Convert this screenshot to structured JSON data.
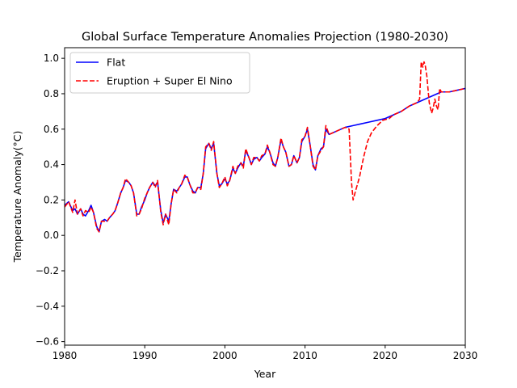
{
  "chart_data": {
    "type": "line",
    "title": "Global Surface Temperature Anomalies Projection (1980-2030)",
    "xlabel": "Year",
    "ylabel": "Temperature Anomaly($^\\circ$C)",
    "ylabel_display": "Temperature Anomaly(°C)",
    "xlim": [
      1980,
      2030
    ],
    "ylim": [
      -0.62,
      1.06
    ],
    "x_ticks": [
      1980,
      1990,
      2000,
      2010,
      2020,
      2030
    ],
    "y_ticks": [
      -0.6,
      -0.4,
      -0.2,
      0.0,
      0.2,
      0.4,
      0.6,
      0.8,
      1.0
    ],
    "x_tick_labels": [
      "1980",
      "1990",
      "2000",
      "2010",
      "2020",
      "2030"
    ],
    "y_tick_labels": [
      "−0.6",
      "−0.4",
      "−0.2",
      "0.0",
      "0.2",
      "0.4",
      "0.6",
      "0.8",
      "1.0"
    ],
    "grid": false,
    "legend_position": "upper-left",
    "series": [
      {
        "name": "Flat",
        "color": "#0000ff",
        "style": "solid",
        "points": [
          [
            1980.0,
            0.17
          ],
          [
            1980.5,
            0.19
          ],
          [
            1981.0,
            0.14
          ],
          [
            1981.3,
            0.15
          ],
          [
            1981.6,
            0.12
          ],
          [
            1982.0,
            0.15
          ],
          [
            1982.3,
            0.12
          ],
          [
            1982.6,
            0.11
          ],
          [
            1983.0,
            0.14
          ],
          [
            1983.3,
            0.17
          ],
          [
            1983.6,
            0.13
          ],
          [
            1984.0,
            0.05
          ],
          [
            1984.3,
            0.02
          ],
          [
            1984.6,
            0.08
          ],
          [
            1985.0,
            0.09
          ],
          [
            1985.3,
            0.08
          ],
          [
            1985.6,
            0.1
          ],
          [
            1986.0,
            0.12
          ],
          [
            1986.3,
            0.14
          ],
          [
            1986.6,
            0.18
          ],
          [
            1987.0,
            0.24
          ],
          [
            1987.3,
            0.27
          ],
          [
            1987.6,
            0.31
          ],
          [
            1988.0,
            0.3
          ],
          [
            1988.3,
            0.28
          ],
          [
            1988.6,
            0.24
          ],
          [
            1989.0,
            0.12
          ],
          [
            1989.3,
            0.12
          ],
          [
            1989.6,
            0.16
          ],
          [
            1990.0,
            0.2
          ],
          [
            1990.3,
            0.24
          ],
          [
            1990.6,
            0.27
          ],
          [
            1991.0,
            0.3
          ],
          [
            1991.3,
            0.28
          ],
          [
            1991.6,
            0.3
          ],
          [
            1992.0,
            0.14
          ],
          [
            1992.3,
            0.07
          ],
          [
            1992.6,
            0.12
          ],
          [
            1993.0,
            0.08
          ],
          [
            1993.3,
            0.18
          ],
          [
            1993.6,
            0.26
          ],
          [
            1994.0,
            0.25
          ],
          [
            1994.3,
            0.27
          ],
          [
            1994.6,
            0.29
          ],
          [
            1995.0,
            0.33
          ],
          [
            1995.3,
            0.33
          ],
          [
            1995.6,
            0.29
          ],
          [
            1996.0,
            0.25
          ],
          [
            1996.3,
            0.24
          ],
          [
            1996.6,
            0.27
          ],
          [
            1997.0,
            0.27
          ],
          [
            1997.3,
            0.35
          ],
          [
            1997.6,
            0.49
          ],
          [
            1998.0,
            0.52
          ],
          [
            1998.3,
            0.49
          ],
          [
            1998.6,
            0.52
          ],
          [
            1999.0,
            0.35
          ],
          [
            1999.3,
            0.28
          ],
          [
            1999.6,
            0.29
          ],
          [
            2000.0,
            0.32
          ],
          [
            2000.3,
            0.29
          ],
          [
            2000.6,
            0.31
          ],
          [
            2001.0,
            0.38
          ],
          [
            2001.3,
            0.35
          ],
          [
            2001.6,
            0.38
          ],
          [
            2002.0,
            0.41
          ],
          [
            2002.3,
            0.39
          ],
          [
            2002.6,
            0.48
          ],
          [
            2003.0,
            0.44
          ],
          [
            2003.3,
            0.4
          ],
          [
            2003.6,
            0.43
          ],
          [
            2004.0,
            0.44
          ],
          [
            2004.3,
            0.42
          ],
          [
            2004.6,
            0.44
          ],
          [
            2005.0,
            0.46
          ],
          [
            2005.3,
            0.5
          ],
          [
            2005.6,
            0.47
          ],
          [
            2006.0,
            0.41
          ],
          [
            2006.3,
            0.39
          ],
          [
            2006.6,
            0.44
          ],
          [
            2007.0,
            0.54
          ],
          [
            2007.3,
            0.5
          ],
          [
            2007.6,
            0.47
          ],
          [
            2008.0,
            0.39
          ],
          [
            2008.3,
            0.4
          ],
          [
            2008.6,
            0.45
          ],
          [
            2009.0,
            0.41
          ],
          [
            2009.3,
            0.44
          ],
          [
            2009.6,
            0.53
          ],
          [
            2010.0,
            0.56
          ],
          [
            2010.3,
            0.6
          ],
          [
            2010.6,
            0.52
          ],
          [
            2011.0,
            0.4
          ],
          [
            2011.3,
            0.37
          ],
          [
            2011.6,
            0.45
          ],
          [
            2012.0,
            0.49
          ],
          [
            2012.3,
            0.5
          ],
          [
            2012.6,
            0.6
          ],
          [
            2013.0,
            0.57
          ],
          [
            2014.0,
            0.59
          ],
          [
            2015.0,
            0.61
          ],
          [
            2016.0,
            0.62
          ],
          [
            2017.0,
            0.63
          ],
          [
            2018.0,
            0.64
          ],
          [
            2019.0,
            0.65
          ],
          [
            2020.0,
            0.66
          ],
          [
            2021.0,
            0.68
          ],
          [
            2022.0,
            0.7
          ],
          [
            2023.0,
            0.73
          ],
          [
            2024.0,
            0.75
          ],
          [
            2025.0,
            0.77
          ],
          [
            2026.0,
            0.79
          ],
          [
            2027.0,
            0.81
          ],
          [
            2028.0,
            0.81
          ],
          [
            2029.0,
            0.82
          ],
          [
            2030.0,
            0.83
          ]
        ]
      },
      {
        "name": "Eruption + Super El Nino",
        "color": "#ff0000",
        "style": "dashed",
        "points": [
          [
            1980.0,
            0.16
          ],
          [
            1980.5,
            0.19
          ],
          [
            1981.0,
            0.13
          ],
          [
            1981.3,
            0.2
          ],
          [
            1981.6,
            0.12
          ],
          [
            1982.0,
            0.15
          ],
          [
            1982.3,
            0.11
          ],
          [
            1982.6,
            0.14
          ],
          [
            1983.0,
            0.13
          ],
          [
            1983.3,
            0.16
          ],
          [
            1983.6,
            0.13
          ],
          [
            1984.0,
            0.04
          ],
          [
            1984.3,
            0.02
          ],
          [
            1984.6,
            0.08
          ],
          [
            1985.0,
            0.08
          ],
          [
            1985.3,
            0.08
          ],
          [
            1985.6,
            0.1
          ],
          [
            1986.0,
            0.12
          ],
          [
            1986.3,
            0.14
          ],
          [
            1986.6,
            0.18
          ],
          [
            1987.0,
            0.24
          ],
          [
            1987.3,
            0.27
          ],
          [
            1987.6,
            0.32
          ],
          [
            1988.0,
            0.3
          ],
          [
            1988.3,
            0.28
          ],
          [
            1988.6,
            0.24
          ],
          [
            1989.0,
            0.11
          ],
          [
            1989.3,
            0.12
          ],
          [
            1989.6,
            0.15
          ],
          [
            1990.0,
            0.21
          ],
          [
            1990.3,
            0.24
          ],
          [
            1990.6,
            0.27
          ],
          [
            1991.0,
            0.3
          ],
          [
            1991.3,
            0.27
          ],
          [
            1991.6,
            0.31
          ],
          [
            1992.0,
            0.13
          ],
          [
            1992.3,
            0.06
          ],
          [
            1992.6,
            0.12
          ],
          [
            1993.0,
            0.06
          ],
          [
            1993.3,
            0.18
          ],
          [
            1993.6,
            0.26
          ],
          [
            1994.0,
            0.24
          ],
          [
            1994.3,
            0.27
          ],
          [
            1994.6,
            0.29
          ],
          [
            1995.0,
            0.34
          ],
          [
            1995.3,
            0.33
          ],
          [
            1995.6,
            0.29
          ],
          [
            1996.0,
            0.24
          ],
          [
            1996.3,
            0.24
          ],
          [
            1996.6,
            0.27
          ],
          [
            1997.0,
            0.26
          ],
          [
            1997.3,
            0.35
          ],
          [
            1997.6,
            0.5
          ],
          [
            1998.0,
            0.52
          ],
          [
            1998.3,
            0.48
          ],
          [
            1998.6,
            0.53
          ],
          [
            1999.0,
            0.35
          ],
          [
            1999.3,
            0.27
          ],
          [
            1999.6,
            0.29
          ],
          [
            2000.0,
            0.33
          ],
          [
            2000.3,
            0.28
          ],
          [
            2000.6,
            0.31
          ],
          [
            2001.0,
            0.39
          ],
          [
            2001.3,
            0.35
          ],
          [
            2001.6,
            0.39
          ],
          [
            2002.0,
            0.41
          ],
          [
            2002.3,
            0.38
          ],
          [
            2002.6,
            0.49
          ],
          [
            2003.0,
            0.44
          ],
          [
            2003.3,
            0.4
          ],
          [
            2003.6,
            0.44
          ],
          [
            2004.0,
            0.44
          ],
          [
            2004.3,
            0.42
          ],
          [
            2004.6,
            0.45
          ],
          [
            2005.0,
            0.46
          ],
          [
            2005.3,
            0.51
          ],
          [
            2005.6,
            0.47
          ],
          [
            2006.0,
            0.4
          ],
          [
            2006.3,
            0.39
          ],
          [
            2006.6,
            0.44
          ],
          [
            2007.0,
            0.55
          ],
          [
            2007.3,
            0.5
          ],
          [
            2007.6,
            0.47
          ],
          [
            2008.0,
            0.39
          ],
          [
            2008.3,
            0.4
          ],
          [
            2008.6,
            0.45
          ],
          [
            2009.0,
            0.41
          ],
          [
            2009.3,
            0.44
          ],
          [
            2009.6,
            0.54
          ],
          [
            2010.0,
            0.56
          ],
          [
            2010.3,
            0.61
          ],
          [
            2010.6,
            0.52
          ],
          [
            2011.0,
            0.39
          ],
          [
            2011.3,
            0.37
          ],
          [
            2011.6,
            0.45
          ],
          [
            2012.0,
            0.48
          ],
          [
            2012.3,
            0.5
          ],
          [
            2012.6,
            0.62
          ],
          [
            2013.0,
            0.57
          ],
          [
            2014.0,
            0.59
          ],
          [
            2015.0,
            0.61
          ],
          [
            2015.5,
            0.6
          ],
          [
            2015.8,
            0.3
          ],
          [
            2016.0,
            0.2
          ],
          [
            2016.3,
            0.25
          ],
          [
            2016.8,
            0.33
          ],
          [
            2017.3,
            0.44
          ],
          [
            2017.8,
            0.53
          ],
          [
            2018.3,
            0.58
          ],
          [
            2019.0,
            0.62
          ],
          [
            2019.7,
            0.65
          ],
          [
            2020.5,
            0.66
          ],
          [
            2021.0,
            0.68
          ],
          [
            2022.0,
            0.7
          ],
          [
            2023.0,
            0.73
          ],
          [
            2024.0,
            0.75
          ],
          [
            2024.3,
            0.77
          ],
          [
            2024.5,
            0.98
          ],
          [
            2024.7,
            0.95
          ],
          [
            2024.85,
            0.98
          ],
          [
            2025.0,
            0.96
          ],
          [
            2025.2,
            0.9
          ],
          [
            2025.5,
            0.75
          ],
          [
            2025.8,
            0.69
          ],
          [
            2026.0,
            0.72
          ],
          [
            2026.2,
            0.77
          ],
          [
            2026.4,
            0.73
          ],
          [
            2026.6,
            0.71
          ],
          [
            2026.8,
            0.83
          ],
          [
            2027.0,
            0.81
          ],
          [
            2028.0,
            0.81
          ],
          [
            2029.0,
            0.82
          ],
          [
            2030.0,
            0.83
          ]
        ]
      }
    ]
  }
}
